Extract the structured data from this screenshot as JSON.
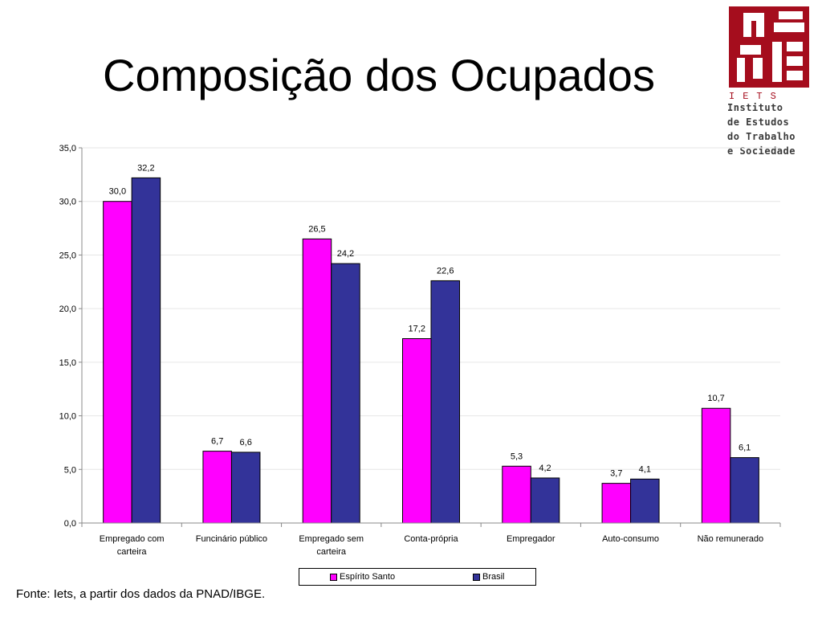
{
  "slide": {
    "title": "Composição dos Ocupados",
    "source": "Fonte: Iets, a partir dos dados da PNAD/IBGE."
  },
  "logo": {
    "acronym": "IETS",
    "lines": [
      "Instituto",
      "de Estudos",
      "do Trabalho",
      "e Sociedade"
    ],
    "color": "#a50d1d"
  },
  "chart_data": {
    "type": "bar",
    "title": "",
    "xlabel": "",
    "ylabel": "",
    "ylim": [
      0,
      35
    ],
    "yticks": [
      0,
      5,
      10,
      15,
      20,
      25,
      30,
      35
    ],
    "ytick_labels": [
      "0,0",
      "5,0",
      "10,0",
      "15,0",
      "20,0",
      "25,0",
      "30,0",
      "35,0"
    ],
    "grid": "horizontal",
    "legend_position": "bottom",
    "categories": [
      [
        "Empregado com",
        "carteira"
      ],
      [
        "Funcinário público"
      ],
      [
        "Empregado sem",
        "carteira"
      ],
      [
        "Conta-própria"
      ],
      [
        "Empregador"
      ],
      [
        "Auto-consumo"
      ],
      [
        "Não remunerado"
      ]
    ],
    "series": [
      {
        "name": "Espírito Santo",
        "color": "#ff00ff",
        "values": [
          30.0,
          6.7,
          26.5,
          17.2,
          5.3,
          3.7,
          10.7
        ],
        "labels": [
          "30,0",
          "6,7",
          "26,5",
          "17,2",
          "5,3",
          "3,7",
          "10,7"
        ]
      },
      {
        "name": "Brasil",
        "color": "#333399",
        "values": [
          32.2,
          6.6,
          24.2,
          22.6,
          4.2,
          4.1,
          6.1
        ],
        "labels": [
          "32,2",
          "6,6",
          "24,2",
          "22,6",
          "4,2",
          "4,1",
          "6,1"
        ]
      }
    ]
  }
}
